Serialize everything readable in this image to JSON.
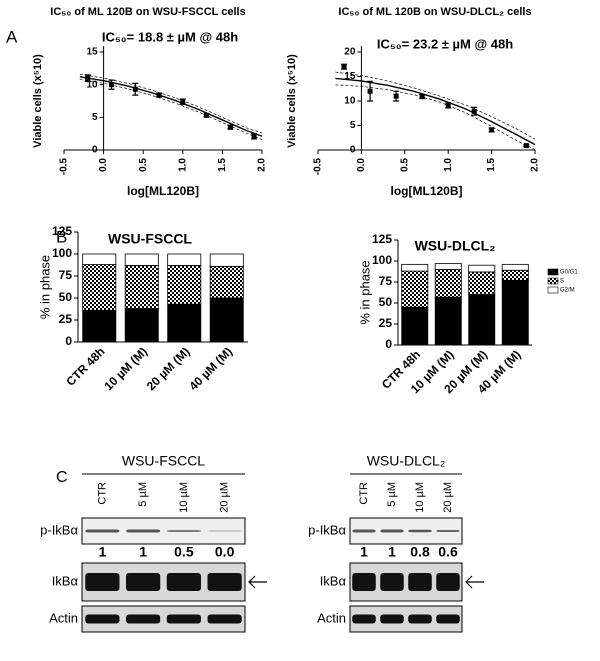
{
  "chart_data": [
    {
      "type": "scatter",
      "panel": "A",
      "title": "IC₅₀ of ML 120B on WSU-FSCCL cells",
      "annotation": "IC₅₀= 18.8 ± µM @ 48h",
      "x_label": "log[ML120B]",
      "y_label": "Viable cells (x⁵10)",
      "xlim": [
        -0.5,
        2.0
      ],
      "xticks": [
        -0.5,
        {
          "value": 0,
          "label": "0.0"
        },
        0.5,
        {
          "value": 1,
          "label": "1.0"
        },
        1.5,
        {
          "value": 2,
          "label": "2.0"
        }
      ],
      "ylim": [
        0,
        15
      ],
      "yticks": [
        0,
        5,
        10,
        15
      ],
      "points": {
        "x": [
          -0.2,
          0.1,
          0.4,
          0.7,
          1.0,
          1.3,
          1.6,
          1.9
        ],
        "values": [
          11,
          10,
          9.3,
          8.4,
          7.4,
          5.3,
          3.5,
          2.1
        ],
        "errors": [
          0.5,
          0.7,
          0.9,
          0.3,
          0.4,
          0.2,
          0.3,
          0.4
        ]
      },
      "fit": {
        "x": [
          -0.3,
          0,
          0.3,
          0.6,
          0.9,
          1.2,
          1.5,
          1.8,
          2.0
        ],
        "values": [
          11.2,
          10.6,
          9.8,
          8.8,
          7.6,
          6.2,
          4.6,
          3.0,
          2.1
        ]
      },
      "ci": [
        {
          "x": [
            -0.3,
            0,
            0.3,
            0.6,
            0.9,
            1.2,
            1.5,
            1.8,
            2.0
          ],
          "values": [
            11.6,
            11.0,
            10.2,
            9.2,
            8.0,
            6.6,
            5.0,
            3.4,
            2.6
          ]
        },
        {
          "x": [
            -0.3,
            0,
            0.3,
            0.6,
            0.9,
            1.2,
            1.5,
            1.8,
            2.0
          ],
          "values": [
            10.8,
            10.2,
            9.4,
            8.4,
            7.2,
            5.8,
            4.2,
            2.6,
            1.6
          ]
        }
      ]
    },
    {
      "type": "scatter",
      "title": "IC₅₀ of ML 120B on WSU-DLCL₂ cells",
      "annotation": "IC₅₀= 23.2 ± µM @ 48h",
      "x_label": "log[ML120B]",
      "y_label": "Viable cells (x⁵10)",
      "xlim": [
        -0.5,
        2.0
      ],
      "xticks": [
        -0.5,
        {
          "value": 0,
          "label": "0.0"
        },
        0.5,
        {
          "value": 1,
          "label": "1.0"
        },
        1.5,
        {
          "value": 2,
          "label": "2.0"
        }
      ],
      "ylim": [
        0,
        20
      ],
      "yticks": [
        0,
        5,
        10,
        15,
        20
      ],
      "points": {
        "x": [
          -0.2,
          0.1,
          0.4,
          0.7,
          1.0,
          1.3,
          1.5,
          1.9
        ],
        "values": [
          17,
          12,
          11,
          10.9,
          9.1,
          7.9,
          4.1,
          0.9
        ],
        "errors": [
          0.5,
          2,
          1,
          0.4,
          0.5,
          0.8,
          0.4,
          0.2
        ]
      },
      "fit": {
        "x": [
          -0.3,
          0,
          0.3,
          0.6,
          0.9,
          1.2,
          1.5,
          1.8,
          2.0
        ],
        "values": [
          14.6,
          14.1,
          13.2,
          12.0,
          10.4,
          8.4,
          5.8,
          3.0,
          1.1
        ]
      },
      "ci": [
        {
          "x": [
            -0.3,
            0,
            0.3,
            0.6,
            0.9,
            1.2,
            1.5,
            1.8,
            2.0
          ],
          "values": [
            15.9,
            15.2,
            14.1,
            12.7,
            11.0,
            9.2,
            6.8,
            4.2,
            2.2
          ]
        },
        {
          "x": [
            -0.3,
            0,
            0.3,
            0.6,
            0.9,
            1.2,
            1.5,
            1.8,
            2.0
          ],
          "values": [
            13.3,
            13.0,
            12.3,
            11.3,
            9.8,
            7.6,
            4.8,
            1.8,
            0.1
          ]
        }
      ]
    },
    {
      "type": "bar",
      "panel": "B",
      "title": "WSU-FSCCL",
      "y_label": "% in phase",
      "stacked": true,
      "ylim": [
        0,
        125
      ],
      "yticks": [
        0,
        25,
        50,
        75,
        100,
        125
      ],
      "categories": [
        "CTR 48h",
        "10 µM (M)",
        "20 µM (M)",
        "40 µM (M)"
      ],
      "series": [
        {
          "name": "G0/G1",
          "values": [
            36,
            38,
            43,
            50
          ]
        },
        {
          "name": "S",
          "values": [
            52,
            49,
            44,
            36
          ]
        },
        {
          "name": "G2/M",
          "values": [
            12,
            13,
            13,
            14
          ]
        }
      ]
    },
    {
      "type": "bar",
      "title": "WSU-DLCL₂",
      "y_label": "% in phase",
      "stacked": true,
      "ylim": [
        0,
        125
      ],
      "yticks": [
        0,
        25,
        50,
        75,
        100,
        125
      ],
      "legend": "right",
      "categories": [
        "CTR 48h",
        "10 µM (M)",
        "20 µM (M)",
        "40 µM (M)"
      ],
      "series": [
        {
          "name": "G0/G1",
          "values": [
            45,
            57,
            60,
            77
          ]
        },
        {
          "name": "S",
          "values": [
            43,
            33,
            27,
            12
          ]
        },
        {
          "name": "G2/M",
          "values": [
            8,
            7,
            8,
            7
          ]
        }
      ]
    }
  ],
  "blots": {
    "panel": "C",
    "items": [
      {
        "cell_line": "WSU-FSCCL",
        "lanes": [
          "CTR",
          "5 µM",
          "10 µM",
          "20 µM"
        ],
        "rows": [
          "p-IkBα",
          "IkBα",
          "Actin"
        ],
        "quant": [
          "1",
          "1",
          "0.5",
          "0.0"
        ]
      },
      {
        "cell_line": "WSU-DLCL₂",
        "lanes": [
          "CTR",
          "5 µM",
          "10 µM",
          "20 µM"
        ],
        "rows": [
          "p-IkBα",
          "IkBα",
          "Actin"
        ],
        "quant": [
          "1",
          "1",
          "0.8",
          "0.6"
        ]
      }
    ]
  }
}
